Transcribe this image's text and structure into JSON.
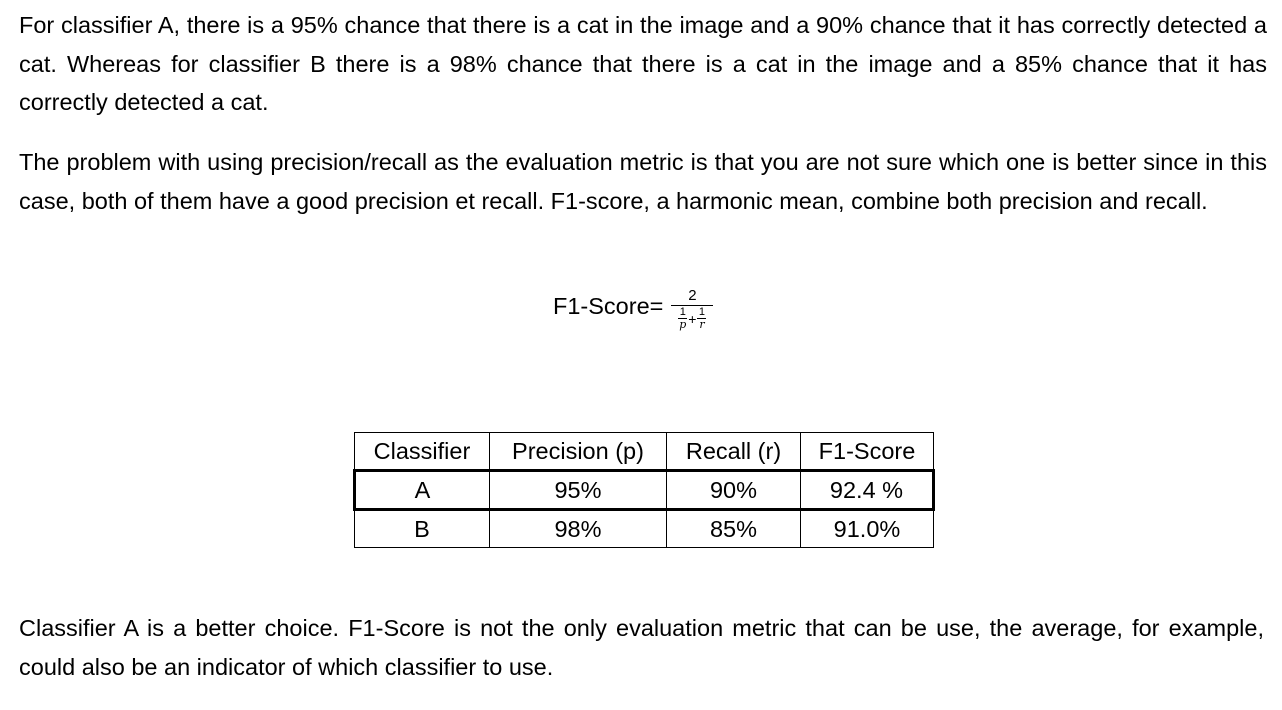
{
  "paragraphs": {
    "intro": "For classifier A, there is a 95% chance that there is a cat in the image and a 90% chance that it has correctly detected a cat. Whereas for classifier B there is a 98% chance that there is a cat in the image and a 85% chance that it has correctly detected a cat.",
    "problem": "The problem with using precision/recall as the evaluation metric is that you are not sure which one is better since in this case, both of them have a good precision et recall. F1-score, a harmonic mean, combine both precision and recall.",
    "conclusion": "Classifier A is a better choice. F1-Score is not the only evaluation metric that can be use, the average, for example, could also be an indicator of which classifier to use."
  },
  "formula": {
    "lhs": "F1-Score=",
    "numerator": "2",
    "term1_num": "1",
    "term1_den": "p",
    "plus": "+",
    "term2_num": "1",
    "term2_den": "r"
  },
  "table": {
    "headers": [
      "Classifier",
      "Precision (p)",
      "Recall (r)",
      "F1-Score"
    ],
    "rows": [
      [
        "A",
        "95%",
        "90%",
        "92.4 %"
      ],
      [
        "B",
        "98%",
        "85%",
        "91.0%"
      ]
    ]
  }
}
